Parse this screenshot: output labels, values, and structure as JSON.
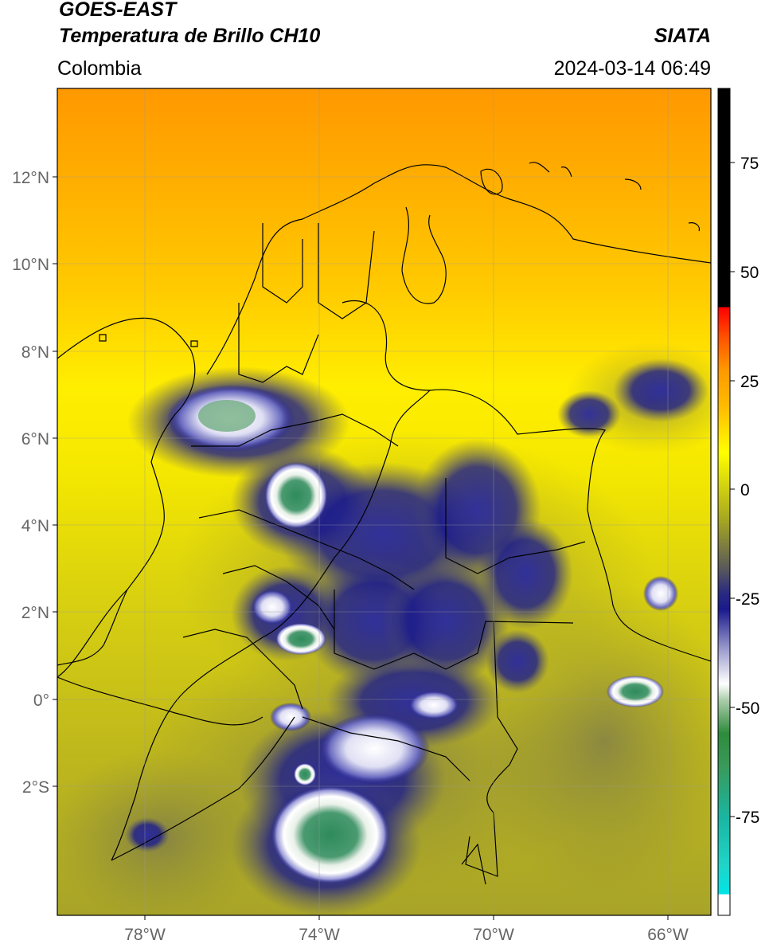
{
  "header": {
    "satellite": "GOES-EAST",
    "product": "Temperatura de Brillo CH10",
    "region": "Colombia",
    "agency": "SIATA",
    "datetime": "2024-03-14 06:49"
  },
  "map": {
    "lon_range": [
      -80,
      -65
    ],
    "lat_range": [
      -5,
      14
    ],
    "lat_ticks": [
      {
        "value": 12,
        "label": "12°N"
      },
      {
        "value": 10,
        "label": "10°N"
      },
      {
        "value": 8,
        "label": "8°N"
      },
      {
        "value": 6,
        "label": "6°N"
      },
      {
        "value": 4,
        "label": "4°N"
      },
      {
        "value": 2,
        "label": "2°N"
      },
      {
        "value": 0,
        "label": "0°"
      },
      {
        "value": -2,
        "label": "2°S"
      }
    ],
    "lon_ticks": [
      {
        "value": -78,
        "label": "78°W"
      },
      {
        "value": -74,
        "label": "74°W"
      },
      {
        "value": -70,
        "label": "70°W"
      },
      {
        "value": -66,
        "label": "66°W"
      }
    ],
    "gridlines": true
  },
  "colorbar": {
    "range": [
      -95,
      90
    ],
    "ticks": [
      {
        "value": 75,
        "label": "75"
      },
      {
        "value": 50,
        "label": "50"
      },
      {
        "value": 25,
        "label": "25"
      },
      {
        "value": 0,
        "label": "0"
      },
      {
        "value": -25,
        "label": "-25"
      },
      {
        "value": -50,
        "label": "-50"
      },
      {
        "value": -75,
        "label": "-75"
      }
    ],
    "colors": {
      "orange": "#ff9800",
      "yellow": "#ffff00",
      "olive": "#a8a820",
      "navy": "#1a1a8c",
      "white": "#ffffff",
      "green": "#2e8b3c",
      "teal": "#1ab4a0",
      "cyan": "#00e5e5",
      "red": "#ff0000",
      "black": "#000000"
    }
  }
}
